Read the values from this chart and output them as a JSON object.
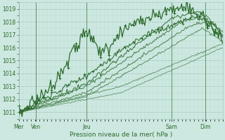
{
  "xlabel": "Pression niveau de la mer( hPa )",
  "ylim": [
    1010.5,
    1019.5
  ],
  "yticks": [
    1011,
    1012,
    1013,
    1014,
    1015,
    1016,
    1017,
    1018,
    1019
  ],
  "background_color": "#cce8e0",
  "grid_major_color": "#aaccc4",
  "grid_minor_color": "#bbddd6",
  "line_color": "#2d6a2d",
  "tick_label_color": "#2d6a2d",
  "day_labels": [
    "Mer",
    "Ven",
    "Jeu",
    "Sam",
    "Dim"
  ],
  "day_positions": [
    0.0,
    0.083,
    0.333,
    0.75,
    0.917
  ],
  "xlim": [
    0.0,
    1.0
  ]
}
